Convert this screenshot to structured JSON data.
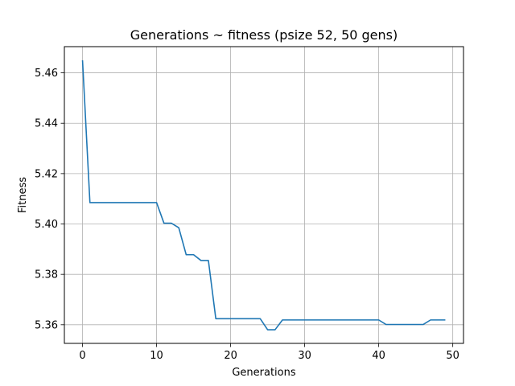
{
  "chart_data": {
    "type": "line",
    "title": "Generations ~ fitness (psize 52, 50 gens)",
    "xlabel": "Generations",
    "ylabel": "Fitness",
    "xlim": [
      -2.45,
      51.45
    ],
    "ylim": [
      5.3526,
      5.4704
    ],
    "xticks": [
      0,
      10,
      20,
      30,
      40,
      50
    ],
    "yticks": [
      5.36,
      5.38,
      5.4,
      5.42,
      5.44,
      5.46
    ],
    "xtick_labels": [
      "0",
      "10",
      "20",
      "30",
      "40",
      "50"
    ],
    "ytick_labels": [
      "5.36",
      "5.38",
      "5.40",
      "5.42",
      "5.44",
      "5.46"
    ],
    "grid": true,
    "line_color": "#1f77b4",
    "x": [
      0,
      1,
      2,
      3,
      4,
      5,
      6,
      7,
      8,
      9,
      10,
      11,
      12,
      13,
      14,
      15,
      16,
      17,
      18,
      19,
      20,
      21,
      22,
      23,
      24,
      25,
      26,
      27,
      28,
      29,
      30,
      31,
      32,
      33,
      34,
      35,
      36,
      37,
      38,
      39,
      40,
      41,
      42,
      43,
      44,
      45,
      46,
      47,
      48,
      49
    ],
    "y": [
      5.465,
      5.4085,
      5.4085,
      5.4085,
      5.4085,
      5.4085,
      5.4085,
      5.4085,
      5.4085,
      5.4085,
      5.4085,
      5.4003,
      5.4003,
      5.3985,
      5.3878,
      5.3878,
      5.3855,
      5.3855,
      5.3624,
      5.3624,
      5.3624,
      5.3624,
      5.3624,
      5.3624,
      5.3624,
      5.358,
      5.358,
      5.3619,
      5.3619,
      5.3619,
      5.3619,
      5.3619,
      5.3619,
      5.3619,
      5.3619,
      5.3619,
      5.3619,
      5.3619,
      5.3619,
      5.3619,
      5.3619,
      5.3601,
      5.3601,
      5.3601,
      5.3601,
      5.3601,
      5.3601,
      5.3619,
      5.3619,
      5.3619
    ]
  }
}
